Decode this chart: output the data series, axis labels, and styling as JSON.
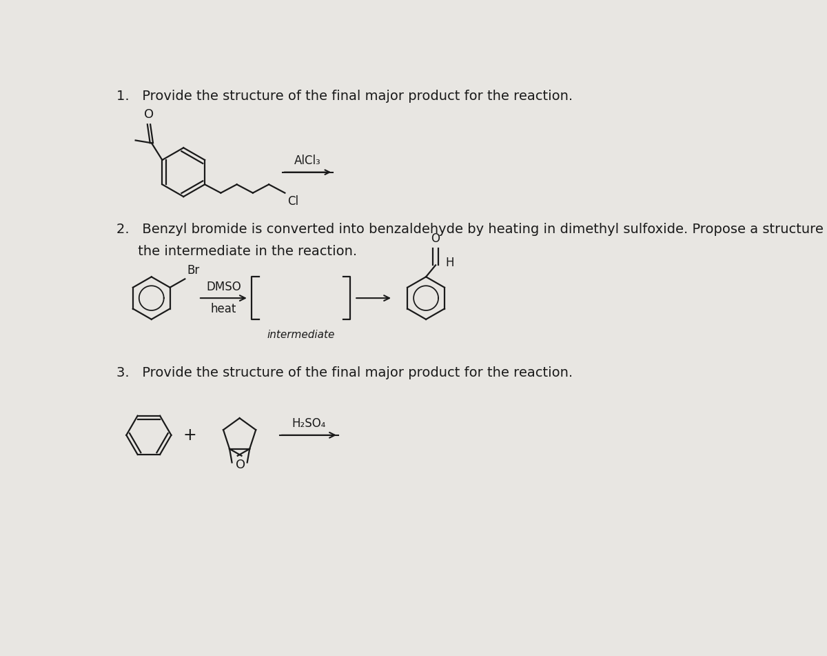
{
  "bg_color": "#e8e6e2",
  "text_color": "#1a1a1a",
  "title1": "1.   Provide the structure of the final major product for the reaction.",
  "title2_line1": "2.   Benzyl bromide is converted into benzaldehyde by heating in dimethyl sulfoxide. Propose a structure for",
  "title2_line2": "     the intermediate in the reaction.",
  "title3": "3.   Provide the structure of the final major product for the reaction.",
  "reagent1": "AlCl₃",
  "reagent2_line1": "DMSO",
  "reagent2_line2": "heat",
  "reagent3": "H₂SO₄",
  "label_intermediate": "intermediate",
  "label_Br": "Br",
  "label_Cl": "Cl",
  "label_H": "H",
  "label_O": "O",
  "label_plus": "+"
}
